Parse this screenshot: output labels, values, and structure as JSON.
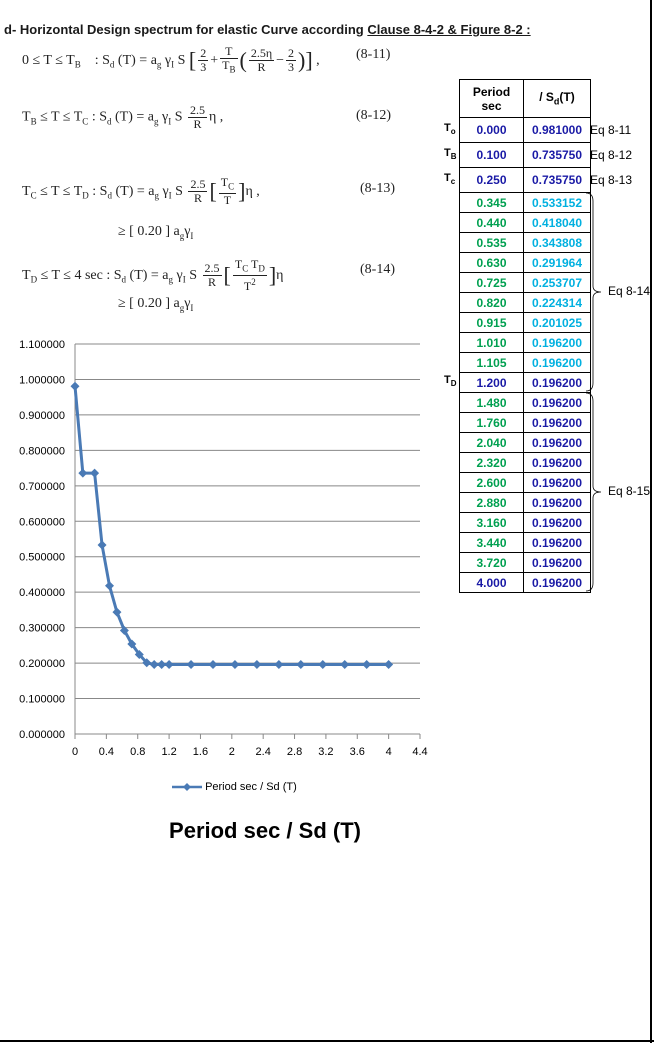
{
  "heading": {
    "prefix": "d- Horizontal Design spectrum for elastic Curve according ",
    "underlined": "Clause 8-4-2 & Figure 8-2 :"
  },
  "equations": [
    {
      "range": "0 ≤  T ≤ T",
      "range_sub": "B",
      "number": "(8-11)"
    },
    {
      "range": "T",
      "number": "(8-12)"
    },
    {
      "range": "T",
      "number": "(8-13)",
      "min": "≥ [ 0.20 ]  a",
      "min_sub": "g",
      "min_tail": "γ",
      "min_tail_sub": "I"
    },
    {
      "range": "T",
      "number": "(8-14)",
      "min": "≥ [ 0.20 ]  a",
      "min_sub": "g",
      "min_tail": "γ",
      "min_tail_sub": "I"
    }
  ],
  "table": {
    "header_col1_line1": "Period",
    "header_col1_line2": "sec",
    "header_col2": "/  S",
    "header_col2_sub": "d",
    "header_col2_tail": "(T)",
    "rows": [
      {
        "period": "0.000",
        "sd": "0.981000",
        "period_color": "blue",
        "sd_color": "blue"
      },
      {
        "period": "0.100",
        "sd": "0.735750",
        "period_color": "blue",
        "sd_color": "blue"
      },
      {
        "period": "0.250",
        "sd": "0.735750",
        "period_color": "blue",
        "sd_color": "blue"
      },
      {
        "period": "0.345",
        "sd": "0.533152",
        "period_color": "green",
        "sd_color": "cyan"
      },
      {
        "period": "0.440",
        "sd": "0.418040",
        "period_color": "green",
        "sd_color": "cyan"
      },
      {
        "period": "0.535",
        "sd": "0.343808",
        "period_color": "green",
        "sd_color": "cyan"
      },
      {
        "period": "0.630",
        "sd": "0.291964",
        "period_color": "green",
        "sd_color": "cyan"
      },
      {
        "period": "0.725",
        "sd": "0.253707",
        "period_color": "green",
        "sd_color": "cyan"
      },
      {
        "period": "0.820",
        "sd": "0.224314",
        "period_color": "green",
        "sd_color": "cyan"
      },
      {
        "period": "0.915",
        "sd": "0.201025",
        "period_color": "green",
        "sd_color": "cyan"
      },
      {
        "period": "1.010",
        "sd": "0.196200",
        "period_color": "green",
        "sd_color": "cyan"
      },
      {
        "period": "1.105",
        "sd": "0.196200",
        "period_color": "green",
        "sd_color": "cyan"
      },
      {
        "period": "1.200",
        "sd": "0.196200",
        "period_color": "blue",
        "sd_color": "blue"
      },
      {
        "period": "1.480",
        "sd": "0.196200",
        "period_color": "green",
        "sd_color": "blue"
      },
      {
        "period": "1.760",
        "sd": "0.196200",
        "period_color": "green",
        "sd_color": "blue"
      },
      {
        "period": "2.040",
        "sd": "0.196200",
        "period_color": "green",
        "sd_color": "blue"
      },
      {
        "period": "2.320",
        "sd": "0.196200",
        "period_color": "green",
        "sd_color": "blue"
      },
      {
        "period": "2.600",
        "sd": "0.196200",
        "period_color": "green",
        "sd_color": "blue"
      },
      {
        "period": "2.880",
        "sd": "0.196200",
        "period_color": "green",
        "sd_color": "blue"
      },
      {
        "period": "3.160",
        "sd": "0.196200",
        "period_color": "green",
        "sd_color": "blue"
      },
      {
        "period": "3.440",
        "sd": "0.196200",
        "period_color": "green",
        "sd_color": "blue"
      },
      {
        "period": "3.720",
        "sd": "0.196200",
        "period_color": "green",
        "sd_color": "blue"
      },
      {
        "period": "4.000",
        "sd": "0.196200",
        "period_color": "blue",
        "sd_color": "blue"
      }
    ],
    "row_labels": [
      {
        "row": 0,
        "letter": "T",
        "sub": "o"
      },
      {
        "row": 1,
        "letter": "T",
        "sub": "B"
      },
      {
        "row": 2,
        "letter": "T",
        "sub": "c"
      },
      {
        "row": 12,
        "letter": "T",
        "sub": "D"
      }
    ],
    "eq_refs": [
      {
        "row": 0,
        "text": "Eq 8-11"
      },
      {
        "row": 1,
        "text": "Eq 8-12"
      },
      {
        "row": 2,
        "text": "Eq 8-13"
      },
      {
        "text": "Eq 8-14",
        "from_row": 3,
        "to_row": 12
      },
      {
        "text": "Eq 8-15",
        "from_row": 13,
        "to_row": 22
      }
    ]
  },
  "colors": {
    "blue": "#1a1aa6",
    "green": "#00a050",
    "cyan": "#00b0e0",
    "line": "#4a7ab5"
  },
  "chart_data": {
    "type": "line",
    "title": "Period sec   /   Sd (T)",
    "series": [
      {
        "name": "Period sec  /   Sd (T)",
        "x": [
          0,
          0.1,
          0.25,
          0.345,
          0.44,
          0.535,
          0.63,
          0.725,
          0.82,
          0.915,
          1.01,
          1.105,
          1.2,
          1.48,
          1.76,
          2.04,
          2.32,
          2.6,
          2.88,
          3.16,
          3.44,
          3.72,
          4.0
        ],
        "y": [
          0.981,
          0.73575,
          0.73575,
          0.533152,
          0.41804,
          0.343808,
          0.291964,
          0.253707,
          0.224314,
          0.201025,
          0.1962,
          0.1962,
          0.1962,
          0.1962,
          0.1962,
          0.1962,
          0.1962,
          0.1962,
          0.1962,
          0.1962,
          0.1962,
          0.1962,
          0.1962
        ]
      }
    ],
    "xlim": [
      0,
      4.4
    ],
    "ylim": [
      0,
      1.1
    ],
    "x_ticks": [
      "0",
      "0.4",
      "0.8",
      "1.2",
      "1.6",
      "2",
      "2.4",
      "2.8",
      "3.2",
      "3.6",
      "4",
      "4.4"
    ],
    "y_ticks": [
      "0.000000",
      "0.100000",
      "0.200000",
      "0.300000",
      "0.400000",
      "0.500000",
      "0.600000",
      "0.700000",
      "0.800000",
      "0.900000",
      "1.000000",
      "1.100000"
    ],
    "grid": "horizontal",
    "legend": "bottom"
  }
}
